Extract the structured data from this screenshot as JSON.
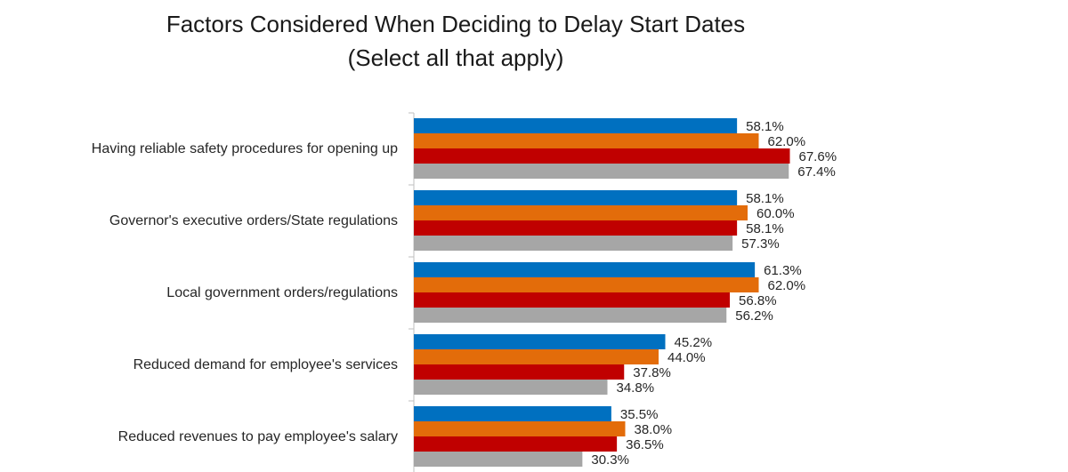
{
  "chart_data": {
    "type": "bar",
    "orientation": "horizontal",
    "title": "Factors Considered When Deciding to Delay Start Dates",
    "subtitle": "(Select all that apply)",
    "categories": [
      "Having reliable safety procedures for opening up",
      "Governor's executive orders/State regulations",
      "Local government orders/regulations",
      "Reduced demand for employee's services",
      "Reduced revenues to pay employee's salary"
    ],
    "series": [
      {
        "color": "#0070c0",
        "values": [
          58.1,
          58.1,
          61.3,
          45.2,
          35.5
        ]
      },
      {
        "color": "#e36c0a",
        "values": [
          62.0,
          60.0,
          62.0,
          44.0,
          38.0
        ]
      },
      {
        "color": "#c00000",
        "values": [
          67.6,
          58.1,
          56.8,
          37.8,
          36.5
        ]
      },
      {
        "color": "#a6a6a6",
        "values": [
          67.4,
          57.3,
          56.2,
          34.8,
          30.3
        ]
      }
    ],
    "data_labels": [
      [
        "58.1%",
        "58.1%",
        "61.3%",
        "45.2%",
        "35.5%"
      ],
      [
        "62.0%",
        "60.0%",
        "62.0%",
        "44.0%",
        "38.0%"
      ],
      [
        "67.6%",
        "58.1%",
        "56.8%",
        "37.8%",
        "36.5%"
      ],
      [
        "67.4%",
        "57.3%",
        "56.2%",
        "34.8%",
        "30.3%"
      ]
    ],
    "xlim": [
      0,
      100
    ],
    "grid": false,
    "legend": false
  }
}
